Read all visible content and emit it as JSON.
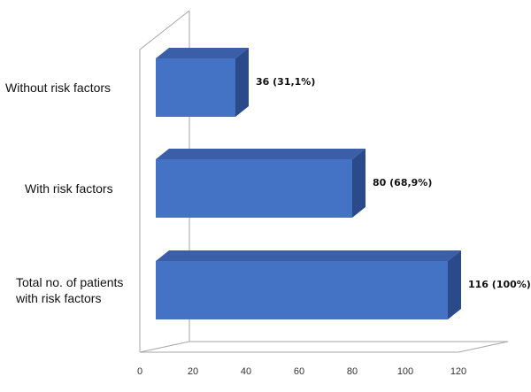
{
  "chart_data": {
    "type": "bar",
    "orientation": "horizontal",
    "style": "3d",
    "title": "",
    "xlabel": "",
    "ylabel": "",
    "xlim": [
      0,
      120
    ],
    "x_ticks": [
      "0",
      "20",
      "40",
      "60",
      "80",
      "100",
      "120"
    ],
    "categories": [
      [
        "Without risk factors"
      ],
      [
        "With risk factors"
      ],
      [
        "Total no. of patients",
        "with risk factors"
      ]
    ],
    "values": [
      36,
      80,
      116
    ],
    "data_labels": [
      "36 (31,1%)",
      "80 (68,9%)",
      "116 (100%)"
    ],
    "grid": false,
    "legend": "none",
    "colors": {
      "bar_front": "#4472c4",
      "bar_top": "#3a5ea8",
      "bar_side": "#2b4a8a",
      "wall": "#a6a6a6"
    }
  }
}
